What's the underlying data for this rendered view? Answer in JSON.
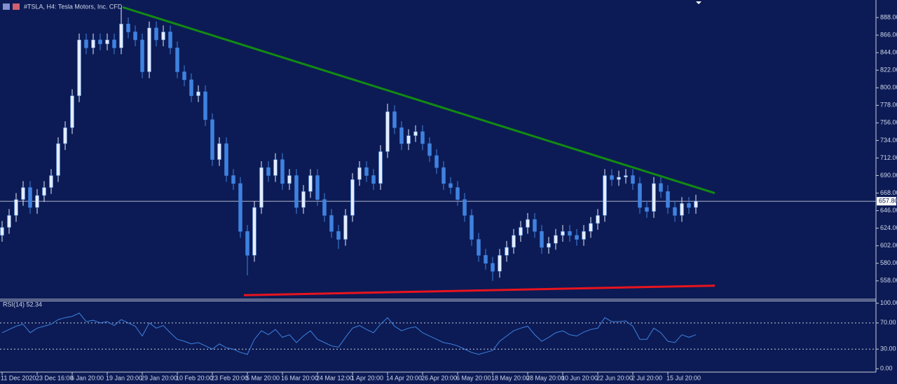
{
  "chart_data": {
    "type": "candlestick",
    "title": "#TSLA, H4:  Tesla Motors, Inc.  CFD",
    "categories": [
      "11 Dec 2020",
      null,
      null,
      null,
      null,
      "23 Dec 16:00",
      null,
      null,
      null,
      null,
      "6 Jan 20:00",
      null,
      null,
      null,
      null,
      "19 Jan 20:00",
      null,
      null,
      null,
      null,
      "29 Jan 20:00",
      null,
      null,
      null,
      null,
      "10 Feb 20:00",
      null,
      null,
      null,
      null,
      "23 Feb 20:00",
      null,
      null,
      null,
      null,
      "5 Mar 20:00",
      null,
      null,
      null,
      null,
      "16 Mar 20:00",
      null,
      null,
      null,
      null,
      "24 Mar 12:00",
      null,
      null,
      null,
      null,
      "1 Apr 20:00",
      null,
      null,
      null,
      null,
      "14 Apr 20:00",
      null,
      null,
      null,
      null,
      "26 Apr 20:00",
      null,
      null,
      null,
      null,
      "6 May 20:00",
      null,
      null,
      null,
      null,
      "18 May 20:00",
      null,
      null,
      null,
      null,
      "28 May 20:00",
      null,
      null,
      null,
      null,
      "10 Jun 20:00",
      null,
      null,
      null,
      null,
      "22 Jun 20:00",
      null,
      null,
      null,
      null,
      "2 Jul 20:00",
      null,
      null,
      null,
      null,
      "15 Jul 20:00",
      null,
      null,
      null,
      null
    ],
    "open": [
      615,
      625,
      640,
      660,
      675,
      650,
      665,
      675,
      690,
      730,
      750,
      790,
      860,
      850,
      860,
      855,
      860,
      850,
      880,
      870,
      860,
      820,
      875,
      860,
      870,
      850,
      820,
      810,
      790,
      795,
      760,
      710,
      730,
      690,
      680,
      620,
      590,
      650,
      700,
      690,
      710,
      680,
      690,
      650,
      670,
      690,
      660,
      640,
      620,
      610,
      640,
      685,
      700,
      690,
      680,
      720,
      770,
      750,
      730,
      740,
      745,
      730,
      715,
      700,
      680,
      675,
      660,
      640,
      610,
      590,
      580,
      570,
      590,
      600,
      615,
      625,
      635,
      620,
      600,
      605,
      615,
      620,
      615,
      610,
      620,
      630,
      640,
      690,
      685,
      688,
      690,
      680,
      650,
      645,
      680,
      670,
      650,
      640,
      655,
      650
    ],
    "high": [
      633,
      648,
      668,
      683,
      683,
      673,
      683,
      698,
      738,
      758,
      798,
      868,
      868,
      868,
      868,
      868,
      868,
      900,
      888,
      878,
      868,
      883,
      883,
      878,
      878,
      858,
      828,
      818,
      803,
      803,
      768,
      738,
      738,
      698,
      688,
      628,
      658,
      708,
      708,
      718,
      718,
      698,
      698,
      678,
      698,
      698,
      668,
      648,
      628,
      648,
      693,
      708,
      708,
      698,
      728,
      780,
      778,
      758,
      748,
      753,
      753,
      738,
      723,
      708,
      688,
      683,
      668,
      648,
      618,
      598,
      588,
      598,
      608,
      623,
      633,
      643,
      643,
      628,
      613,
      623,
      628,
      628,
      623,
      628,
      638,
      648,
      698,
      698,
      696,
      698,
      698,
      688,
      658,
      688,
      688,
      678,
      658,
      663,
      663,
      666
    ],
    "low": [
      607,
      617,
      632,
      652,
      642,
      642,
      657,
      667,
      682,
      722,
      742,
      782,
      842,
      842,
      847,
      847,
      842,
      842,
      862,
      852,
      812,
      812,
      852,
      852,
      842,
      812,
      802,
      782,
      782,
      752,
      702,
      702,
      682,
      672,
      612,
      565,
      582,
      642,
      682,
      682,
      672,
      672,
      642,
      642,
      662,
      652,
      632,
      612,
      598,
      602,
      632,
      677,
      682,
      672,
      672,
      712,
      742,
      722,
      722,
      732,
      722,
      707,
      692,
      672,
      667,
      652,
      632,
      602,
      582,
      572,
      558,
      562,
      582,
      592,
      607,
      617,
      612,
      592,
      592,
      597,
      607,
      607,
      602,
      602,
      612,
      622,
      632,
      677,
      677,
      680,
      672,
      642,
      637,
      637,
      662,
      642,
      632,
      632,
      642,
      642
    ],
    "close": [
      625,
      640,
      660,
      675,
      650,
      665,
      675,
      690,
      730,
      750,
      790,
      860,
      850,
      860,
      855,
      860,
      850,
      880,
      870,
      860,
      820,
      875,
      860,
      870,
      850,
      820,
      810,
      790,
      795,
      760,
      710,
      730,
      690,
      680,
      620,
      590,
      650,
      700,
      690,
      710,
      680,
      690,
      650,
      670,
      690,
      660,
      640,
      620,
      610,
      640,
      685,
      700,
      690,
      680,
      720,
      770,
      750,
      730,
      740,
      745,
      730,
      715,
      700,
      680,
      675,
      660,
      640,
      610,
      590,
      580,
      570,
      590,
      600,
      615,
      625,
      635,
      620,
      600,
      605,
      615,
      620,
      615,
      610,
      620,
      630,
      640,
      690,
      685,
      688,
      690,
      680,
      650,
      645,
      680,
      670,
      650,
      640,
      655,
      650,
      658
    ],
    "up_color": "#e4ecff",
    "down_color": "#3f82e0",
    "ylim": [
      535,
      910
    ],
    "yticks": [
      {
        "value": 558,
        "label": "558.00"
      },
      {
        "value": 580,
        "label": "580.00"
      },
      {
        "value": 602,
        "label": "602.00"
      },
      {
        "value": 624,
        "label": "624.00"
      },
      {
        "value": 646,
        "label": "646.00"
      },
      {
        "value": 668,
        "label": "668.00"
      },
      {
        "value": 690,
        "label": "690.00"
      },
      {
        "value": 712,
        "label": "712.00"
      },
      {
        "value": 734,
        "label": "734.00"
      },
      {
        "value": 756,
        "label": "756.00"
      },
      {
        "value": 778,
        "label": "778.00"
      },
      {
        "value": 800,
        "label": "800.00"
      },
      {
        "value": 822,
        "label": "822.00"
      },
      {
        "value": 844,
        "label": "844.00"
      },
      {
        "value": 866,
        "label": "866.00"
      },
      {
        "value": 888,
        "label": "888.00"
      }
    ],
    "last_price": {
      "value": 657.8,
      "label": "657.80"
    },
    "trendlines": [
      {
        "color": "#138a13",
        "x": [
          17.2,
          101.7
        ],
        "y": [
          901,
          668
        ]
      },
      {
        "color": "#e8141e",
        "x": [
          34.5,
          101.7
        ],
        "y": [
          540,
          552
        ]
      }
    ],
    "rsi": {
      "type": "line",
      "title": "RSI(14) 52.34",
      "color": "#3f82e0",
      "values": [
        55,
        60,
        65,
        68,
        55,
        62,
        65,
        68,
        75,
        78,
        80,
        85,
        72,
        74,
        70,
        72,
        66,
        75,
        70,
        65,
        50,
        70,
        62,
        66,
        55,
        45,
        42,
        38,
        40,
        35,
        30,
        38,
        32,
        30,
        25,
        22,
        45,
        58,
        52,
        60,
        48,
        52,
        40,
        50,
        58,
        45,
        40,
        35,
        33,
        48,
        62,
        66,
        60,
        55,
        68,
        78,
        65,
        58,
        62,
        64,
        55,
        50,
        45,
        40,
        38,
        35,
        30,
        25,
        22,
        25,
        28,
        42,
        50,
        58,
        62,
        65,
        52,
        42,
        48,
        55,
        58,
        52,
        50,
        56,
        60,
        62,
        78,
        72,
        72,
        73,
        65,
        45,
        45,
        62,
        55,
        42,
        40,
        52,
        48,
        52
      ],
      "ylim": [
        -5,
        104
      ],
      "yticks": [
        {
          "value": 0,
          "label": "0.00"
        },
        {
          "value": 30,
          "label": "30.00"
        },
        {
          "value": 70,
          "label": "70.00"
        },
        {
          "value": 100,
          "label": "100.00"
        }
      ],
      "levels": [
        70,
        30
      ]
    }
  }
}
